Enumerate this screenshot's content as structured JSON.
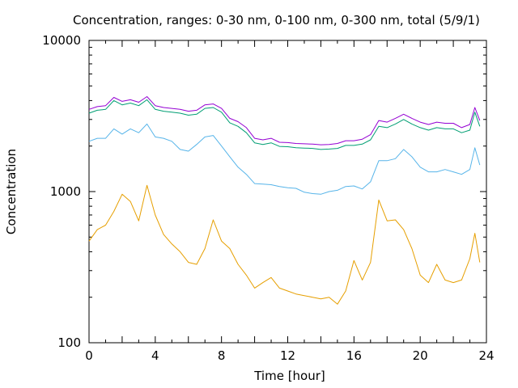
{
  "chart_data": {
    "type": "line",
    "title": "Concentration, ranges: 0-30 nm, 0-100 nm, 0-300 nm, total (5/9/1)",
    "xlabel": "Time [hour]",
    "ylabel": "Concentration",
    "xlim": [
      0,
      24
    ],
    "ylim": [
      100,
      10000
    ],
    "yscale": "log",
    "x_ticks": [
      "0",
      "4",
      "8",
      "12",
      "16",
      "20",
      "24"
    ],
    "y_ticks": [
      "100",
      "1000",
      "10000"
    ],
    "grid": false,
    "legend": "none",
    "x": [
      0.0,
      0.5,
      1.0,
      1.5,
      2.0,
      2.5,
      3.0,
      3.5,
      4.0,
      4.5,
      5.0,
      5.5,
      6.0,
      6.5,
      7.0,
      7.5,
      8.0,
      8.5,
      9.0,
      9.5,
      10.0,
      10.5,
      11.0,
      11.5,
      12.0,
      12.5,
      13.0,
      13.5,
      14.0,
      14.5,
      15.0,
      15.5,
      16.0,
      16.5,
      17.0,
      17.5,
      18.0,
      18.5,
      19.0,
      19.5,
      20.0,
      20.5,
      21.0,
      21.5,
      22.0,
      22.5,
      23.0,
      23.3,
      23.6
    ],
    "series": [
      {
        "color": "#e69f00",
        "values": [
          470,
          560,
          600,
          740,
          960,
          860,
          640,
          1100,
          700,
          520,
          450,
          400,
          340,
          330,
          420,
          650,
          470,
          420,
          330,
          280,
          230,
          250,
          270,
          230,
          220,
          210,
          205,
          200,
          195,
          200,
          180,
          220,
          350,
          260,
          340,
          880,
          640,
          650,
          560,
          420,
          280,
          250,
          330,
          260,
          250,
          260,
          360,
          530,
          340
        ]
      },
      {
        "color": "#56b4e9",
        "values": [
          2150,
          2250,
          2250,
          2600,
          2400,
          2600,
          2450,
          2800,
          2300,
          2250,
          2150,
          1900,
          1850,
          2050,
          2300,
          2350,
          2000,
          1700,
          1450,
          1300,
          1130,
          1120,
          1110,
          1080,
          1060,
          1050,
          990,
          970,
          960,
          1000,
          1020,
          1080,
          1090,
          1040,
          1160,
          1600,
          1600,
          1650,
          1900,
          1700,
          1450,
          1350,
          1350,
          1400,
          1350,
          1300,
          1400,
          1950,
          1500
        ]
      },
      {
        "color": "#009e73",
        "values": [
          3300,
          3450,
          3500,
          4000,
          3750,
          3850,
          3700,
          4050,
          3500,
          3400,
          3350,
          3300,
          3200,
          3250,
          3550,
          3600,
          3350,
          2850,
          2700,
          2450,
          2100,
          2050,
          2100,
          1990,
          1980,
          1950,
          1940,
          1930,
          1900,
          1910,
          1930,
          2020,
          2020,
          2060,
          2200,
          2700,
          2650,
          2800,
          3000,
          2800,
          2650,
          2550,
          2650,
          2600,
          2600,
          2450,
          2550,
          3350,
          2700
        ]
      },
      {
        "color": "#9400d3",
        "values": [
          3500,
          3650,
          3700,
          4200,
          3950,
          4050,
          3900,
          4250,
          3700,
          3600,
          3550,
          3500,
          3400,
          3450,
          3750,
          3800,
          3550,
          3050,
          2900,
          2650,
          2250,
          2200,
          2250,
          2120,
          2110,
          2080,
          2070,
          2060,
          2040,
          2050,
          2080,
          2170,
          2170,
          2220,
          2380,
          2950,
          2880,
          3050,
          3250,
          3050,
          2880,
          2780,
          2880,
          2830,
          2830,
          2650,
          2780,
          3600,
          2950
        ]
      }
    ]
  }
}
